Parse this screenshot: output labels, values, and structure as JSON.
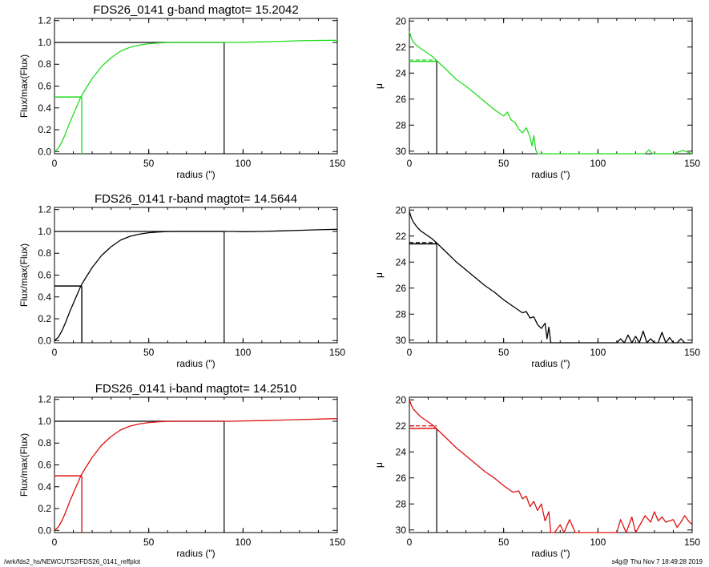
{
  "footer": {
    "left": "/wrk/fds2_hs/NEWCUTS2/FDS26_0141_reffplot",
    "right": "s4g@  Thu Nov  7 18:49:28 2019"
  },
  "chart_data": [
    {
      "type": "line",
      "band": "g",
      "title": "FDS26_0141 g-band  magtot=      15.2042",
      "xlabel": "radius (\")",
      "ylabel": "Flux/max(Flux)",
      "xlim": [
        0,
        150
      ],
      "ylim": [
        -0.02,
        1.22
      ],
      "xticks": [
        "0",
        "50",
        "100",
        "150"
      ],
      "yticks": [
        "0.0",
        "0.2",
        "0.4",
        "0.6",
        "0.8",
        "1.0",
        "1.2"
      ],
      "color": "#22dd22",
      "series": [
        {
          "x": [
            0,
            2,
            4,
            6,
            8,
            10,
            12,
            14,
            16,
            20,
            25,
            30,
            35,
            40,
            45,
            50,
            55,
            60,
            65,
            70,
            75,
            80,
            85,
            90,
            95,
            100,
            110,
            120,
            130,
            140,
            150
          ],
          "y": [
            0,
            0.03,
            0.09,
            0.17,
            0.26,
            0.34,
            0.42,
            0.5,
            0.56,
            0.67,
            0.78,
            0.86,
            0.92,
            0.955,
            0.975,
            0.988,
            0.995,
            0.999,
            1.0,
            1.0,
            1.0,
            1.0,
            1.0,
            1.0,
            1.0,
            1.002,
            1.005,
            1.01,
            1.015,
            1.018,
            1.02
          ]
        }
      ],
      "reference_lines": {
        "half_radius": 14.5,
        "half_flux": 0.5,
        "total_radius": 90,
        "total_flux": 1.0
      }
    },
    {
      "type": "line",
      "band": "g",
      "title": "",
      "xlabel": "radius (\")",
      "ylabel": "μ",
      "xlim": [
        0,
        150
      ],
      "ylim": [
        30.2,
        19.8
      ],
      "xticks": [
        "0",
        "50",
        "100",
        "150"
      ],
      "yticks": [
        "20",
        "22",
        "24",
        "26",
        "28",
        "30"
      ],
      "color": "#22dd22",
      "series": [
        {
          "x": [
            0,
            1,
            2,
            4,
            6,
            8,
            10,
            12,
            15,
            20,
            25,
            30,
            35,
            40,
            45,
            50,
            52,
            54,
            56,
            58,
            60,
            62,
            64,
            65,
            66,
            67,
            68,
            70,
            75,
            80,
            90,
            100,
            110,
            120,
            125,
            127,
            129,
            135,
            140,
            145,
            150
          ],
          "y": [
            20.8,
            21.3,
            21.6,
            21.9,
            22.1,
            22.3,
            22.5,
            22.7,
            23.1,
            23.8,
            24.5,
            25.0,
            25.6,
            26.2,
            26.8,
            27.3,
            27.0,
            27.6,
            27.8,
            28.3,
            28.6,
            28.2,
            28.9,
            29.6,
            28.8,
            29.9,
            30.2,
            30.2,
            30.2,
            30.2,
            30.2,
            30.2,
            30.2,
            30.2,
            30.2,
            29.9,
            30.2,
            30.2,
            30.2,
            29.95,
            30.2
          ]
        }
      ],
      "reference_lines": {
        "half_radius": 14.5,
        "half_mu": 23.1,
        "dashed_mu": 23.0
      }
    },
    {
      "type": "line",
      "band": "r",
      "title": "FDS26_0141 r-band  magtot=      14.5644",
      "xlabel": "radius (\")",
      "ylabel": "Flux/max(Flux)",
      "xlim": [
        0,
        150
      ],
      "ylim": [
        -0.02,
        1.22
      ],
      "xticks": [
        "0",
        "50",
        "100",
        "150"
      ],
      "yticks": [
        "0.0",
        "0.2",
        "0.4",
        "0.6",
        "0.8",
        "1.0",
        "1.2"
      ],
      "color": "#000000",
      "series": [
        {
          "x": [
            0,
            2,
            4,
            6,
            8,
            10,
            12,
            14,
            16,
            20,
            25,
            30,
            35,
            40,
            45,
            50,
            55,
            60,
            65,
            70,
            75,
            80,
            85,
            90,
            95,
            100,
            110,
            120,
            130,
            140,
            150
          ],
          "y": [
            0,
            0.03,
            0.09,
            0.17,
            0.26,
            0.34,
            0.42,
            0.5,
            0.56,
            0.67,
            0.78,
            0.86,
            0.92,
            0.955,
            0.975,
            0.988,
            0.995,
            0.999,
            1.0,
            1.0,
            1.0,
            1.0,
            1.0,
            1.0,
            1.0,
            0.998,
            1.0,
            1.005,
            1.01,
            1.015,
            1.02
          ]
        }
      ],
      "reference_lines": {
        "half_radius": 14.5,
        "half_flux": 0.5,
        "total_radius": 90,
        "total_flux": 1.0
      }
    },
    {
      "type": "line",
      "band": "r",
      "title": "",
      "xlabel": "radius (\")",
      "ylabel": "μ",
      "xlim": [
        0,
        150
      ],
      "ylim": [
        30.2,
        19.8
      ],
      "xticks": [
        "0",
        "50",
        "100",
        "150"
      ],
      "yticks": [
        "20",
        "22",
        "24",
        "26",
        "28",
        "30"
      ],
      "color": "#000000",
      "series": [
        {
          "x": [
            0,
            1,
            2,
            4,
            6,
            8,
            10,
            12,
            15,
            20,
            25,
            30,
            35,
            40,
            45,
            50,
            55,
            60,
            62,
            64,
            66,
            68,
            70,
            72,
            73,
            74,
            75,
            76,
            78,
            90,
            105,
            110,
            112,
            114,
            116,
            118,
            120,
            122,
            124,
            126,
            128,
            130,
            132,
            134,
            136,
            138,
            140,
            142,
            144,
            146,
            148,
            150
          ],
          "y": [
            20.1,
            20.6,
            20.9,
            21.3,
            21.6,
            21.8,
            22.0,
            22.2,
            22.6,
            23.3,
            24.0,
            24.6,
            25.2,
            25.8,
            26.3,
            26.9,
            27.4,
            27.9,
            27.8,
            28.3,
            28.2,
            28.8,
            29.1,
            28.7,
            29.9,
            29.0,
            30.2,
            30.2,
            30.2,
            30.2,
            30.2,
            30.2,
            29.9,
            30.2,
            29.6,
            30.2,
            29.7,
            30.2,
            29.3,
            30.2,
            29.9,
            30.2,
            30.2,
            29.4,
            30.2,
            29.8,
            30.2,
            30.2,
            29.9,
            30.2,
            30.2,
            30.2
          ]
        }
      ],
      "reference_lines": {
        "half_radius": 14.5,
        "half_mu": 22.6,
        "dashed_mu": 22.5
      }
    },
    {
      "type": "line",
      "band": "i",
      "title": "FDS26_0141 i-band  magtot=      14.2510",
      "xlabel": "radius (\")",
      "ylabel": "Flux/max(Flux)",
      "xlim": [
        0,
        150
      ],
      "ylim": [
        -0.02,
        1.22
      ],
      "xticks": [
        "0",
        "50",
        "100",
        "150"
      ],
      "yticks": [
        "0.0",
        "0.2",
        "0.4",
        "0.6",
        "0.8",
        "1.0",
        "1.2"
      ],
      "color": "#dd1111",
      "series": [
        {
          "x": [
            0,
            2,
            4,
            6,
            8,
            10,
            12,
            14,
            16,
            20,
            25,
            30,
            35,
            40,
            45,
            50,
            55,
            60,
            65,
            70,
            75,
            80,
            85,
            90,
            95,
            100,
            110,
            120,
            130,
            140,
            150
          ],
          "y": [
            0,
            0.03,
            0.09,
            0.17,
            0.26,
            0.34,
            0.42,
            0.5,
            0.56,
            0.67,
            0.78,
            0.86,
            0.92,
            0.955,
            0.975,
            0.988,
            0.995,
            0.999,
            1.0,
            1.0,
            1.0,
            1.0,
            1.0,
            1.0,
            1.0,
            1.003,
            1.006,
            1.01,
            1.015,
            1.02,
            1.025
          ]
        }
      ],
      "reference_lines": {
        "half_radius": 14.5,
        "half_flux": 0.5,
        "total_radius": 90,
        "total_flux": 1.0
      }
    },
    {
      "type": "line",
      "band": "i",
      "title": "",
      "xlabel": "radius (\")",
      "ylabel": "μ",
      "xlim": [
        0,
        150
      ],
      "ylim": [
        30.2,
        19.8
      ],
      "xticks": [
        "0",
        "50",
        "100",
        "150"
      ],
      "yticks": [
        "20",
        "22",
        "24",
        "26",
        "28",
        "30"
      ],
      "color": "#dd1111",
      "series": [
        {
          "x": [
            0,
            1,
            2,
            4,
            6,
            8,
            10,
            12,
            15,
            20,
            25,
            30,
            35,
            40,
            45,
            50,
            55,
            58,
            60,
            62,
            64,
            66,
            68,
            70,
            72,
            74,
            75,
            77,
            80,
            82,
            85,
            88,
            92,
            100,
            110,
            112,
            115,
            118,
            120,
            125,
            128,
            130,
            132,
            134,
            136,
            138,
            140,
            142,
            144,
            146,
            148,
            150
          ],
          "y": [
            20.0,
            20.4,
            20.7,
            21.0,
            21.3,
            21.5,
            21.7,
            21.9,
            22.3,
            23.0,
            23.7,
            24.3,
            24.9,
            25.5,
            26.0,
            26.6,
            27.1,
            27.0,
            27.6,
            27.4,
            28.2,
            27.8,
            28.5,
            28.0,
            29.3,
            28.6,
            30.2,
            30.2,
            29.6,
            30.2,
            29.2,
            30.2,
            30.2,
            30.2,
            30.2,
            29.2,
            30.2,
            29.0,
            30.2,
            28.9,
            29.4,
            28.6,
            29.3,
            29.0,
            29.4,
            29.3,
            29.2,
            29.8,
            29.4,
            28.9,
            29.3,
            29.6
          ]
        }
      ],
      "reference_lines": {
        "half_radius": 14.5,
        "half_mu": 22.2,
        "dashed_mu": 22.0
      }
    }
  ]
}
